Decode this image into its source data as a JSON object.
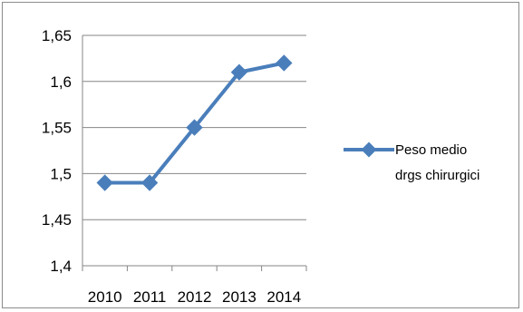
{
  "chart_data": {
    "type": "line",
    "title": "",
    "xlabel": "",
    "ylabel": "",
    "categories": [
      "2010",
      "2011",
      "2012",
      "2013",
      "2014"
    ],
    "series": [
      {
        "name": "Peso medio drgs chirurgici",
        "values": [
          1.49,
          1.49,
          1.55,
          1.61,
          1.62
        ]
      }
    ],
    "ylim": [
      1.4,
      1.65
    ],
    "yticks": [
      "1,4",
      "1,45",
      "1,5",
      "1,55",
      "1,6",
      "1,65"
    ],
    "grid": "horizontal",
    "legend_position": "right",
    "legend_lines": [
      "Peso medio",
      "drgs chirurgici"
    ],
    "series_color": "#4a7ebb"
  }
}
